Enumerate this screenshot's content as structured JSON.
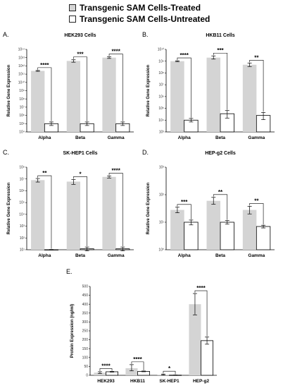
{
  "legend": {
    "treated": "Transgenic SAM Cells-Treated",
    "untreated": "Transgenic SAM Cells-Untreated",
    "treated_color": "#d4d4d4",
    "untreated_color": "#ffffff"
  },
  "chart_data": [
    {
      "letter": "A.",
      "title": "HEK293 Cells",
      "type": "bar",
      "scale": "log",
      "ylabel": "Relative Gene Expression",
      "yticks": [
        "10⁴",
        "10⁵",
        "10⁶",
        "10⁷",
        "10⁸",
        "10⁹",
        "10¹⁰",
        "10¹¹",
        "10¹²",
        "10¹³",
        "10¹⁴"
      ],
      "ylim_exp": [
        4,
        14
      ],
      "categories": [
        "Alpha",
        "Beta",
        "Gamma"
      ],
      "series": [
        {
          "name": "Transgenic SAM Cells-Treated",
          "values": [
            250000000000.0,
            4000000000000.0,
            10000000000000.0
          ],
          "err_lo": [
            220000000000.0,
            2800000000000.0,
            8000000000000.0
          ],
          "err_hi": [
            280000000000.0,
            5500000000000.0,
            12500000000000.0
          ]
        },
        {
          "name": "Transgenic SAM Cells-Untreated",
          "values": [
            100000.0,
            100000.0,
            100000.0
          ],
          "err_lo": [
            60000.0,
            60000.0,
            60000.0
          ],
          "err_hi": [
            160000.0,
            160000.0,
            160000.0
          ]
        }
      ],
      "significance": [
        "****",
        "***",
        "****"
      ]
    },
    {
      "letter": "B.",
      "title": "HKB11 Cells",
      "type": "bar",
      "scale": "log",
      "ylabel": "Relative Gene Expression",
      "yticks": [
        "10³",
        "10⁴",
        "10⁵",
        "10⁶",
        "10⁷",
        "10⁸",
        "10⁹",
        "10¹⁰"
      ],
      "ylim_exp": [
        3,
        10
      ],
      "categories": [
        "Alpha",
        "Beta",
        "Gamma"
      ],
      "series": [
        {
          "name": "Transgenic SAM Cells-Treated",
          "values": [
            1000000000.0,
            2000000000.0,
            500000000.0
          ],
          "err_lo": [
            900000000.0,
            1500000000.0,
            350000000.0
          ],
          "err_hi": [
            1100000000.0,
            2800000000.0,
            700000000.0
          ]
        },
        {
          "name": "Transgenic SAM Cells-Untreated",
          "values": [
            10000.0,
            35000.0,
            25000.0
          ],
          "err_lo": [
            7000.0,
            15000.0,
            11000.0
          ],
          "err_hi": [
            14000.0,
            65000.0,
            45000.0
          ]
        }
      ],
      "significance": [
        "****",
        "***",
        "**"
      ]
    },
    {
      "letter": "C.",
      "title": "SK-HEP1 Cells",
      "type": "bar",
      "scale": "log",
      "ylabel": "Relative Gene Expression",
      "yticks": [
        "10¹",
        "10²",
        "10³",
        "10⁴",
        "10⁵",
        "10⁶",
        "10⁷",
        "10⁸"
      ],
      "ylim_exp": [
        1,
        8
      ],
      "categories": [
        "Alpha",
        "Beta",
        "Gamma"
      ],
      "series": [
        {
          "name": "Transgenic SAM Cells-Treated",
          "values": [
            8000000.0,
            6000000.0,
            15000000.0
          ],
          "err_lo": [
            5500000.0,
            3500000.0,
            12000000.0
          ],
          "err_hi": [
            11000000.0,
            9000000.0,
            18000000.0
          ]
        },
        {
          "name": "Transgenic SAM Cells-Untreated",
          "values": [
            10,
            12,
            12
          ],
          "err_lo": [
            9.5,
            8,
            8
          ],
          "err_hi": [
            10.5,
            17,
            17
          ]
        }
      ],
      "significance": [
        "**",
        "*",
        "****"
      ]
    },
    {
      "letter": "D.",
      "title": "HEP-g2 Cells",
      "type": "bar",
      "scale": "log",
      "ylabel": "Relative Gene Expression",
      "yticks": [
        "10⁰",
        "10¹",
        "10²",
        "10³"
      ],
      "ylim_exp": [
        0,
        3
      ],
      "categories": [
        "Alpha",
        "Beta",
        "Gamma"
      ],
      "series": [
        {
          "name": "Transgenic SAM Cells-Treated",
          "values": [
            28,
            60,
            28
          ],
          "err_lo": [
            22,
            45,
            20
          ],
          "err_hi": [
            35,
            80,
            38
          ]
        },
        {
          "name": "Transgenic SAM Cells-Untreated",
          "values": [
            10,
            10,
            7
          ],
          "err_lo": [
            8,
            8.5,
            6.2
          ],
          "err_hi": [
            12,
            11.5,
            7.8
          ]
        }
      ],
      "significance": [
        "***",
        "**",
        "**"
      ]
    },
    {
      "letter": "E.",
      "title": "",
      "type": "bar",
      "scale": "linear",
      "ylabel": "Protein Expression (ng/ml)",
      "yticks": [
        "0",
        "50",
        "100",
        "150",
        "200",
        "250",
        "300",
        "350",
        "400",
        "450",
        "500"
      ],
      "ylim": [
        0,
        500
      ],
      "categories": [
        "HEK293",
        "HKB11",
        "SK-HEP1",
        "HEP-g2"
      ],
      "series": [
        {
          "name": "Transgenic SAM Cells-Treated",
          "values": [
            15,
            40,
            4,
            400
          ],
          "err_lo": [
            10,
            25,
            1,
            340
          ],
          "err_hi": [
            20,
            60,
            7,
            460
          ]
        },
        {
          "name": "Transgenic SAM Cells-Untreated",
          "values": [
            20,
            22,
            1,
            195
          ],
          "err_lo": [
            18,
            20,
            0.5,
            175
          ],
          "err_hi": [
            22,
            24,
            1.5,
            215
          ]
        }
      ],
      "significance": [
        "****",
        "****",
        "*",
        "****"
      ]
    }
  ]
}
